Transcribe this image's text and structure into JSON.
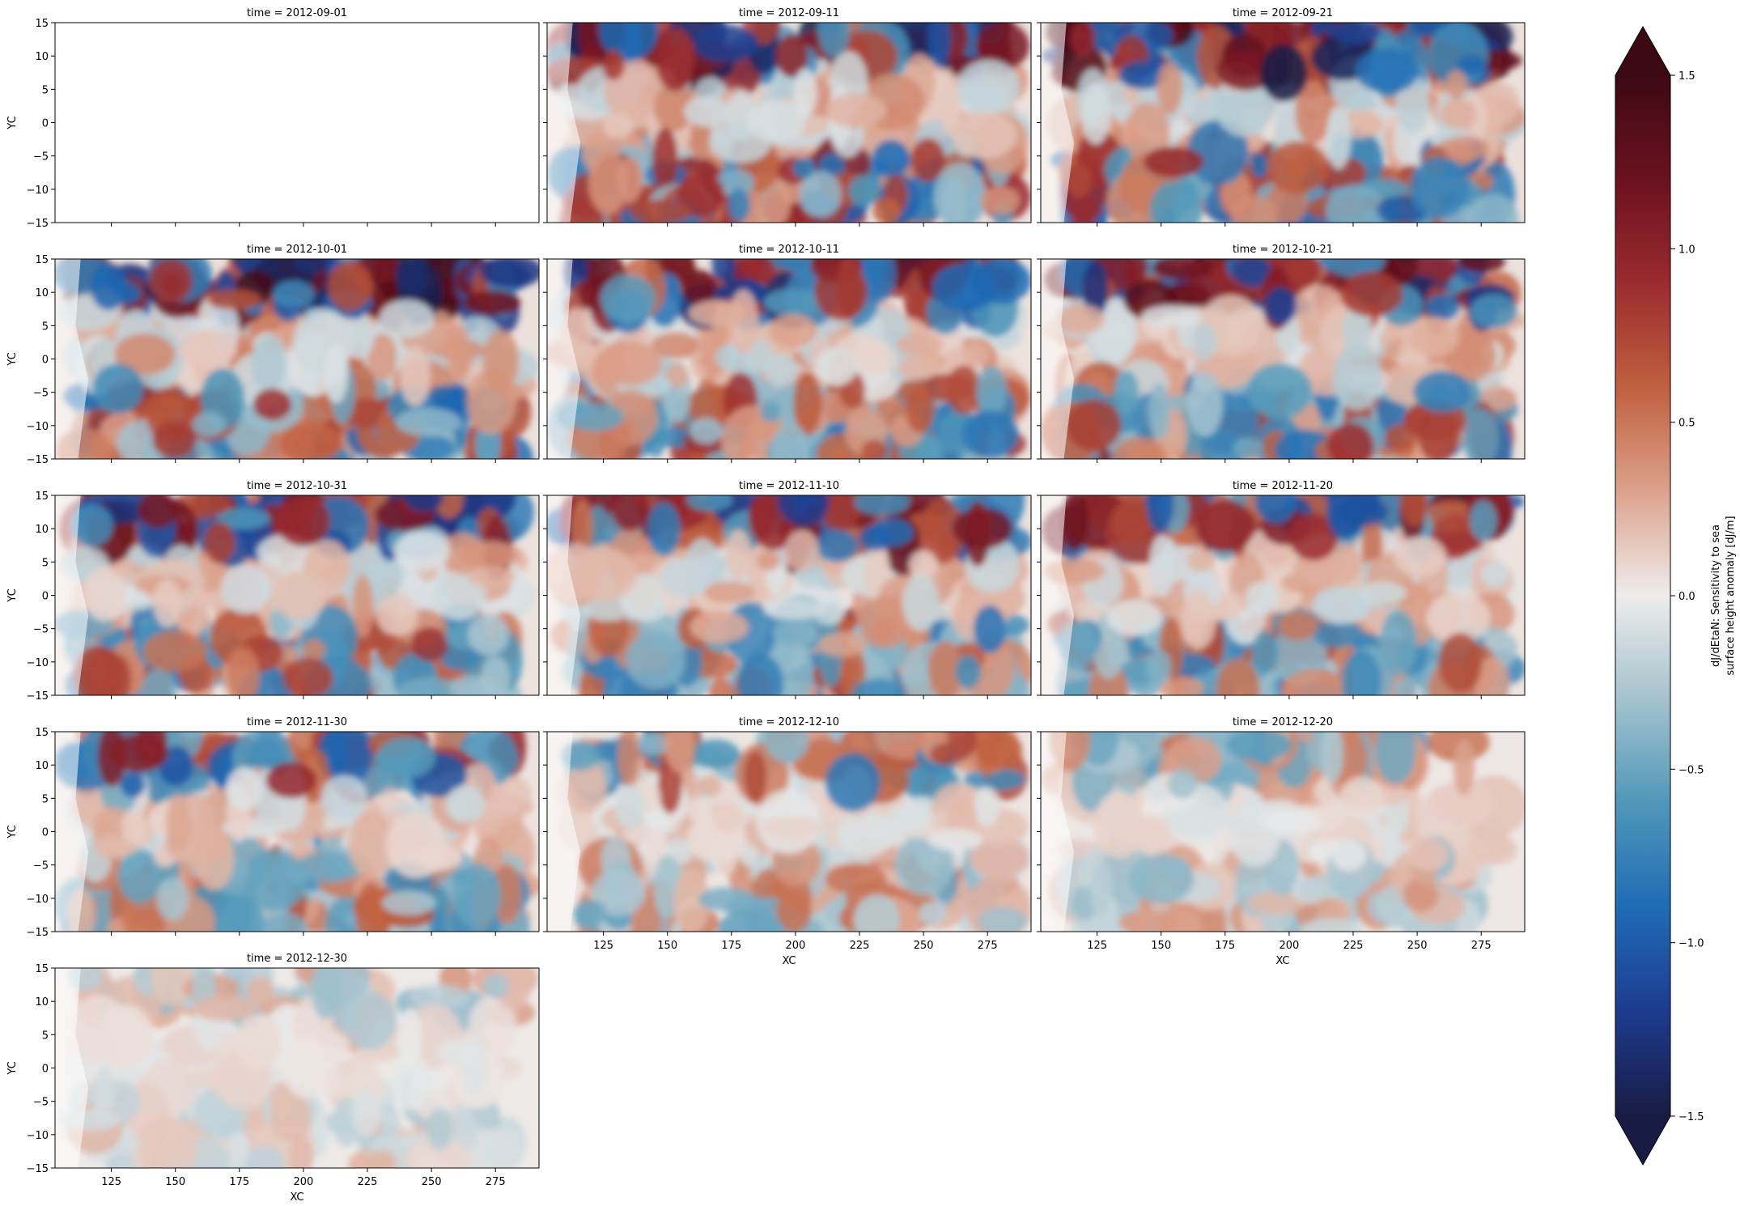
{
  "chart_data": {
    "type": "heatmap",
    "layout": "facet-grid",
    "facet_rows": 5,
    "facet_cols": 3,
    "facet_label_prefix": "time = ",
    "facets": [
      {
        "time": "2012-09-01",
        "has_data": false,
        "intensity": 0.0
      },
      {
        "time": "2012-09-11",
        "has_data": true,
        "intensity": 1.0
      },
      {
        "time": "2012-09-21",
        "has_data": true,
        "intensity": 1.0
      },
      {
        "time": "2012-10-01",
        "has_data": true,
        "intensity": 1.0
      },
      {
        "time": "2012-10-11",
        "has_data": true,
        "intensity": 0.9
      },
      {
        "time": "2012-10-21",
        "has_data": true,
        "intensity": 0.9
      },
      {
        "time": "2012-10-31",
        "has_data": true,
        "intensity": 0.85
      },
      {
        "time": "2012-11-10",
        "has_data": true,
        "intensity": 0.85
      },
      {
        "time": "2012-11-20",
        "has_data": true,
        "intensity": 0.8
      },
      {
        "time": "2012-11-30",
        "has_data": true,
        "intensity": 0.7
      },
      {
        "time": "2012-12-10",
        "has_data": true,
        "intensity": 0.55
      },
      {
        "time": "2012-12-20",
        "has_data": true,
        "intensity": 0.4
      },
      {
        "time": "2012-12-30",
        "has_data": true,
        "intensity": 0.25
      }
    ],
    "xlabel": "XC",
    "ylabel": "YC",
    "xlim": [
      103,
      292
    ],
    "ylim": [
      -15,
      15
    ],
    "x_ticks": [
      125,
      150,
      175,
      200,
      225,
      250,
      275
    ],
    "x_tick_labels": [
      "125",
      "150",
      "175",
      "200",
      "225",
      "250",
      "275"
    ],
    "y_ticks": [
      15,
      10,
      5,
      0,
      -5,
      -10,
      -15
    ],
    "y_tick_labels": [
      "15",
      "10",
      "5",
      "0",
      "−5",
      "−10",
      "−15"
    ],
    "colorbar": {
      "label_line1": "dJ/dEtaN: Sensitivity to sea",
      "label_line2": "surface height anomaly [dJ/m]",
      "vmin": -1.5,
      "vmax": 1.5,
      "extend": "both",
      "ticks": [
        1.5,
        1.0,
        0.5,
        0.0,
        -0.5,
        -1.0,
        -1.5
      ],
      "tick_labels": [
        "1.5",
        "1.0",
        "0.5",
        "0.0",
        "−0.5",
        "−1.0",
        "−1.5"
      ],
      "colormap": "balance",
      "colors": [
        "#181c43",
        "#1d3b8e",
        "#1f6bb5",
        "#4f97b9",
        "#a4c2ce",
        "#eeeceb",
        "#dca28d",
        "#c0603f",
        "#9a2b2f",
        "#6b111f",
        "#3c0912"
      ]
    }
  }
}
